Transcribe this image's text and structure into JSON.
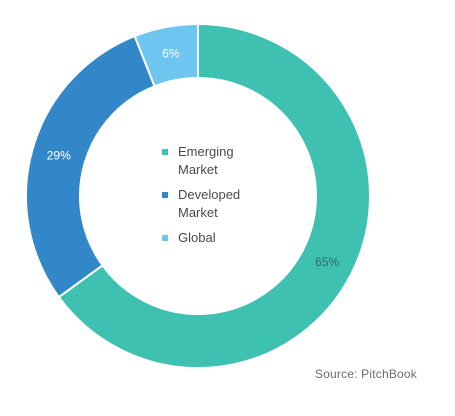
{
  "chart_data": {
    "type": "pie",
    "donut": true,
    "slices": [
      {
        "label": "Emerging Market",
        "value": 65,
        "value_label": "65%",
        "color": "#3fc1b1",
        "label_color": "#2d6c66"
      },
      {
        "label": "Developed Market",
        "value": 29,
        "value_label": "29%",
        "color": "#3287c9",
        "label_color": "#ffffff"
      },
      {
        "label": "Global",
        "value": 6,
        "value_label": "6%",
        "color": "#6ec6f0",
        "label_color": "#ffffff"
      }
    ],
    "legend": {
      "placement": "center",
      "items": [
        {
          "label_lines": [
            "Emerging",
            "Market"
          ],
          "color": "#3fc1b1"
        },
        {
          "label_lines": [
            "Developed",
            "Market"
          ],
          "color": "#3287c9"
        },
        {
          "label_lines": [
            "Global"
          ],
          "color": "#6ec6f0"
        }
      ]
    },
    "source": "Source: PitchBook"
  }
}
